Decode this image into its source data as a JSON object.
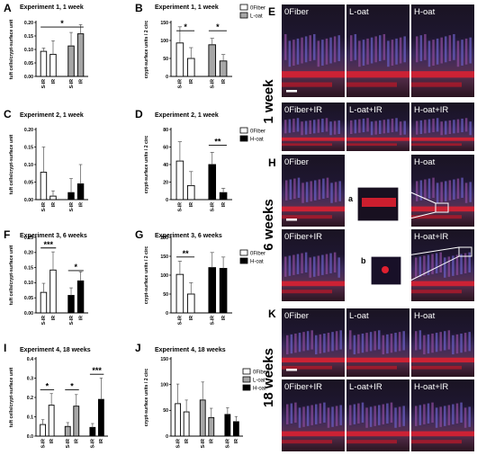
{
  "colors": {
    "white": "#ffffff",
    "grey": "#a6a6a6",
    "black": "#000000",
    "tissue_blue": "#4a5eb0",
    "tissue_red": "#e02030",
    "bg_dark": "#141018"
  },
  "chart_data": [
    {
      "id": "A",
      "type": "bar",
      "title": "Experiment 1, 1 week",
      "ylabel": "tuft cells/crypt-surface unit",
      "ylim": [
        0,
        0.2
      ],
      "yticks": [
        "0.00",
        "0.05",
        "0.10",
        "0.15",
        "0.20"
      ],
      "categories": [
        "S-IR",
        "IR",
        "S-IR",
        "IR"
      ],
      "bars": [
        {
          "value": 0.093,
          "err": 0.012,
          "color": "white"
        },
        {
          "value": 0.082,
          "err": 0.05,
          "color": "white"
        },
        {
          "value": 0.113,
          "err": 0.05,
          "color": "grey"
        },
        {
          "value": 0.158,
          "err": 0.034,
          "color": "grey"
        }
      ],
      "sig": [
        {
          "from": 0,
          "to": 3,
          "label": "*",
          "y": 0.183
        }
      ]
    },
    {
      "id": "B",
      "type": "bar",
      "title": "Experiment 1, 1 week",
      "ylabel": "crypt-surface units / 2 circ",
      "ylim": [
        0,
        150
      ],
      "yticks": [
        "0",
        "50",
        "100",
        "150"
      ],
      "categories": [
        "S-IR",
        "IR",
        "S-IR",
        "IR"
      ],
      "bars": [
        {
          "value": 93,
          "err": 45,
          "color": "white"
        },
        {
          "value": 50,
          "err": 30,
          "color": "white"
        },
        {
          "value": 88,
          "err": 18,
          "color": "grey"
        },
        {
          "value": 43,
          "err": 18,
          "color": "grey"
        }
      ],
      "sig": [
        {
          "from": 0,
          "to": 1,
          "label": "*",
          "y": 127
        },
        {
          "from": 2,
          "to": 3,
          "label": "*",
          "y": 127
        }
      ],
      "legend": [
        "0Fiber",
        "L-oat"
      ]
    },
    {
      "id": "C",
      "type": "bar",
      "title": "Experiment 2, 1 week",
      "ylabel": "tuft cells/crypt-surface unit",
      "ylim": [
        0,
        0.2
      ],
      "yticks": [
        "0.00",
        "0.05",
        "0.10",
        "0.15",
        "0.20"
      ],
      "categories": [
        "S-IR",
        "IR",
        "S-IR",
        "IR"
      ],
      "bars": [
        {
          "value": 0.078,
          "err": 0.072,
          "color": "white"
        },
        {
          "value": 0.01,
          "err": 0.015,
          "color": "white"
        },
        {
          "value": 0.02,
          "err": 0.04,
          "color": "black"
        },
        {
          "value": 0.045,
          "err": 0.055,
          "color": "black"
        }
      ],
      "sig": []
    },
    {
      "id": "D",
      "type": "bar",
      "title": "Experiment 2, 1 week",
      "ylabel": "crypt-surface units / 2 circ",
      "ylim": [
        0,
        80
      ],
      "yticks": [
        "0",
        "20",
        "40",
        "60",
        "80"
      ],
      "categories": [
        "S-IR",
        "IR",
        "S-IR",
        "IR"
      ],
      "bars": [
        {
          "value": 44,
          "err": 22,
          "color": "white"
        },
        {
          "value": 16,
          "err": 16,
          "color": "white"
        },
        {
          "value": 40,
          "err": 14,
          "color": "black"
        },
        {
          "value": 8,
          "err": 5,
          "color": "black"
        }
      ],
      "sig": [
        {
          "from": 2,
          "to": 3,
          "label": "**",
          "y": 62
        }
      ],
      "legend": [
        "0Fiber",
        "H-oat"
      ]
    },
    {
      "id": "F",
      "type": "bar",
      "title": "Experiment 3, 6 weeks",
      "ylabel": "tuft cells/crypt-surface unit",
      "ylim": [
        0,
        0.25
      ],
      "yticks": [
        "0.00",
        "0.05",
        "0.10",
        "0.15",
        "0.20",
        "0.25"
      ],
      "categories": [
        "S-IR",
        "IR",
        "S-IR",
        "IR"
      ],
      "bars": [
        {
          "value": 0.068,
          "err": 0.03,
          "color": "white"
        },
        {
          "value": 0.142,
          "err": 0.06,
          "color": "white"
        },
        {
          "value": 0.058,
          "err": 0.025,
          "color": "black"
        },
        {
          "value": 0.106,
          "err": 0.03,
          "color": "black"
        }
      ],
      "sig": [
        {
          "from": 0,
          "to": 1,
          "label": "***",
          "y": 0.215
        },
        {
          "from": 2,
          "to": 3,
          "label": "*",
          "y": 0.14
        }
      ]
    },
    {
      "id": "G",
      "type": "bar",
      "title": "Experiment 3, 6 weeks",
      "ylabel": "crypt-surface units / 2 circ",
      "ylim": [
        0,
        200
      ],
      "yticks": [
        "0",
        "50",
        "100",
        "150",
        "200"
      ],
      "categories": [
        "S-IR",
        "IR",
        "S-IR",
        "IR"
      ],
      "bars": [
        {
          "value": 102,
          "err": 35,
          "color": "white"
        },
        {
          "value": 50,
          "err": 30,
          "color": "white"
        },
        {
          "value": 120,
          "err": 40,
          "color": "black"
        },
        {
          "value": 118,
          "err": 30,
          "color": "black"
        }
      ],
      "sig": [
        {
          "from": 0,
          "to": 1,
          "label": "**",
          "y": 148
        }
      ],
      "legend": [
        "0Fiber",
        "H-oat"
      ]
    },
    {
      "id": "I",
      "type": "bar",
      "title": "Experiment 4, 18 weeks",
      "ylabel": "tuft cells/crypt-surface unit",
      "ylim": [
        0,
        0.4
      ],
      "yticks": [
        "0.0",
        "0.1",
        "0.2",
        "0.3",
        "0.4"
      ],
      "categories": [
        "S-IR",
        "IR",
        "S-IR",
        "IR",
        "S-IR",
        "IR"
      ],
      "bars": [
        {
          "value": 0.06,
          "err": 0.025,
          "color": "white"
        },
        {
          "value": 0.16,
          "err": 0.06,
          "color": "white"
        },
        {
          "value": 0.05,
          "err": 0.02,
          "color": "grey"
        },
        {
          "value": 0.155,
          "err": 0.06,
          "color": "grey"
        },
        {
          "value": 0.045,
          "err": 0.02,
          "color": "black"
        },
        {
          "value": 0.19,
          "err": 0.11,
          "color": "black"
        }
      ],
      "sig": [
        {
          "from": 0,
          "to": 1,
          "label": "*",
          "y": 0.24
        },
        {
          "from": 2,
          "to": 3,
          "label": "*",
          "y": 0.24
        },
        {
          "from": 4,
          "to": 5,
          "label": "***",
          "y": 0.32
        }
      ]
    },
    {
      "id": "J",
      "type": "bar",
      "title": "Experiment 4, 18 weeks",
      "ylabel": "crypt-surface units / 2 circ",
      "ylim": [
        0,
        150
      ],
      "yticks": [
        "0",
        "50",
        "100",
        "150"
      ],
      "categories": [
        "S-IR",
        "IR",
        "S-IR",
        "IR",
        "S-IR",
        "IR"
      ],
      "bars": [
        {
          "value": 63,
          "err": 38,
          "color": "white"
        },
        {
          "value": 47,
          "err": 23,
          "color": "white"
        },
        {
          "value": 70,
          "err": 35,
          "color": "grey"
        },
        {
          "value": 36,
          "err": 18,
          "color": "grey"
        },
        {
          "value": 42,
          "err": 13,
          "color": "black"
        },
        {
          "value": 28,
          "err": 10,
          "color": "black"
        }
      ],
      "sig": [],
      "legend": [
        "0Fiber",
        "L-oat",
        "H-oat"
      ]
    }
  ],
  "micrographs": {
    "E": {
      "time": "1 week",
      "tiles": [
        "0Fiber",
        "L-oat",
        "H-oat",
        "0Fiber+IR",
        "L-oat+IR",
        "H-oat+IR"
      ]
    },
    "H": {
      "time": "6 weeks",
      "tiles": [
        "0Fiber",
        "H-oat",
        "0Fiber+IR",
        "H-oat+IR"
      ],
      "insets": [
        "a",
        "b"
      ]
    },
    "K": {
      "time": "18 weeks",
      "tiles": [
        "0Fiber",
        "L-oat",
        "H-oat",
        "0Fiber+IR",
        "L-oat+IR",
        "H-oat+IR"
      ]
    }
  }
}
